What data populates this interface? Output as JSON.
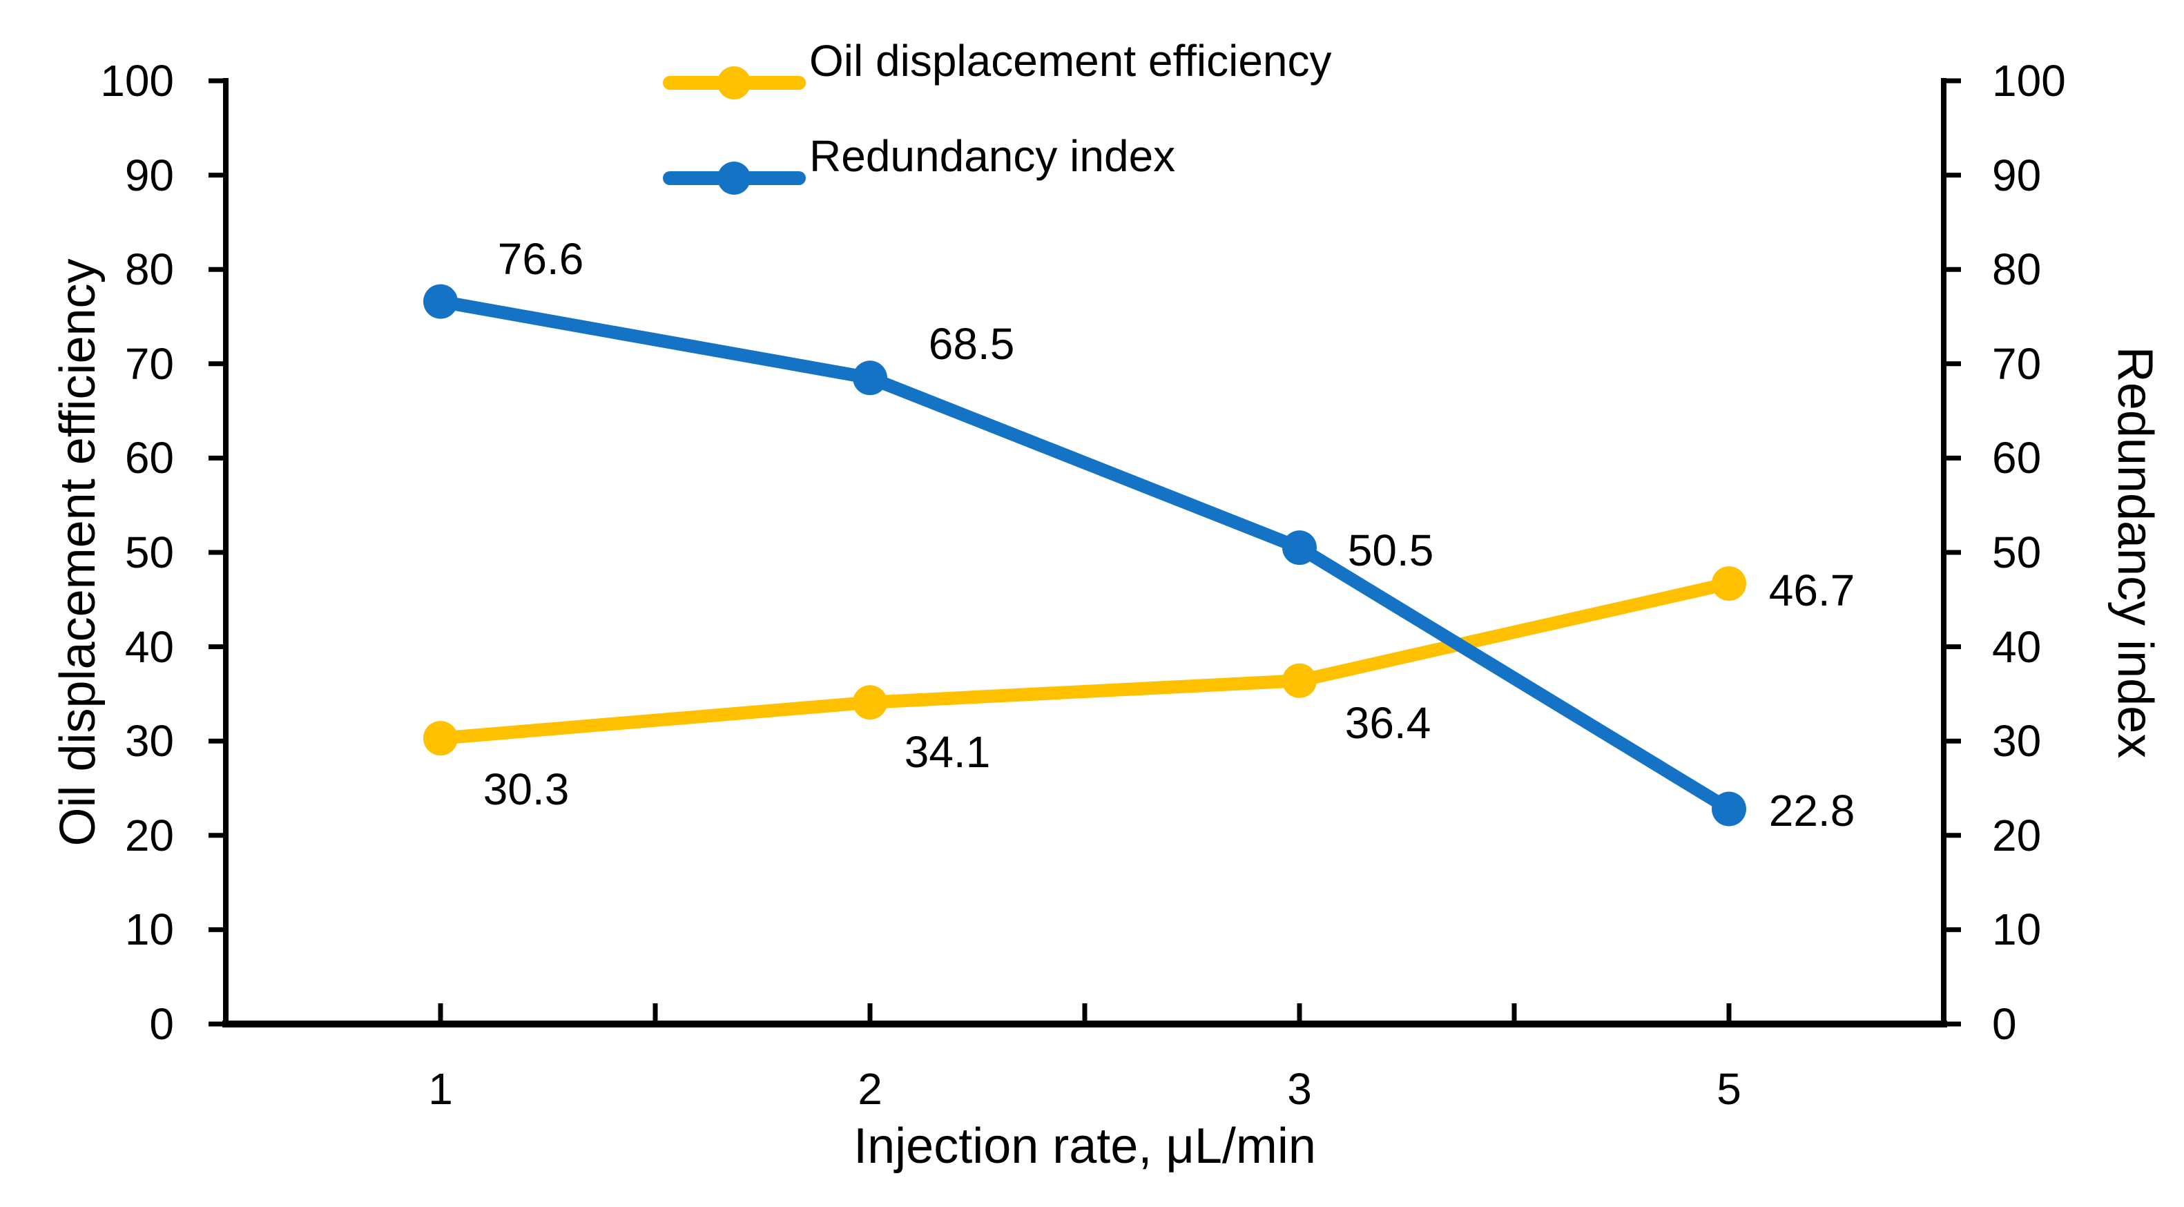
{
  "chart_data": {
    "type": "line",
    "title": "",
    "x_axis": {
      "label": "Injection rate, μL/min",
      "categories": [
        "1",
        "2",
        "3",
        "5"
      ]
    },
    "y_axis_left": {
      "label": "Oil displacement efficiency",
      "min": 0,
      "max": 100,
      "step": 10,
      "tick_labels": [
        "100",
        "90",
        "80",
        "70",
        "60",
        "50",
        "40",
        "30",
        "20",
        "10",
        "0"
      ]
    },
    "y_axis_right": {
      "label": "Redundancy index",
      "min": 0,
      "max": 100,
      "step": 10,
      "tick_labels": [
        "100",
        "90",
        "80",
        "70",
        "60",
        "50",
        "40",
        "30",
        "20",
        "10",
        "0"
      ]
    },
    "grid": "off",
    "legend_position": "top-center",
    "series": [
      {
        "name": "Oil displacement efficiency",
        "axis": "left",
        "color": "#FFC000",
        "marker": "circle",
        "values": [
          30.3,
          34.1,
          36.4,
          46.7
        ],
        "data_labels": [
          "30.3",
          "34.1",
          "36.4",
          "46.7"
        ]
      },
      {
        "name": "Redundancy index",
        "axis": "right",
        "color": "#1573C5",
        "marker": "circle",
        "values": [
          76.6,
          68.5,
          50.5,
          22.8
        ],
        "data_labels": [
          "76.6",
          "68.5",
          "50.5",
          "22.8"
        ]
      }
    ]
  }
}
